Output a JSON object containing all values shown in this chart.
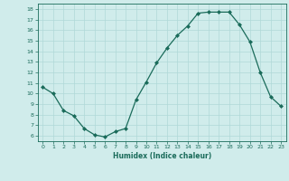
{
  "x": [
    0,
    1,
    2,
    3,
    4,
    5,
    6,
    7,
    8,
    9,
    10,
    11,
    12,
    13,
    14,
    15,
    16,
    17,
    18,
    19,
    20,
    21,
    22,
    23
  ],
  "y": [
    10.6,
    10.0,
    8.4,
    7.9,
    6.7,
    6.1,
    5.9,
    6.4,
    6.7,
    9.4,
    11.1,
    12.9,
    14.3,
    15.5,
    16.4,
    17.6,
    17.7,
    17.7,
    17.7,
    16.5,
    14.9,
    12.0,
    9.7,
    8.8
  ],
  "line_color": "#1a6b5a",
  "marker": "D",
  "marker_size": 2,
  "bg_color": "#d0eceb",
  "grid_color": "#b0d8d8",
  "xlabel": "Humidex (Indice chaleur)",
  "ylim": [
    5.5,
    18.5
  ],
  "xlim": [
    -0.5,
    23.5
  ],
  "yticks": [
    6,
    7,
    8,
    9,
    10,
    11,
    12,
    13,
    14,
    15,
    16,
    17,
    18
  ],
  "xticks": [
    0,
    1,
    2,
    3,
    4,
    5,
    6,
    7,
    8,
    9,
    10,
    11,
    12,
    13,
    14,
    15,
    16,
    17,
    18,
    19,
    20,
    21,
    22,
    23
  ]
}
